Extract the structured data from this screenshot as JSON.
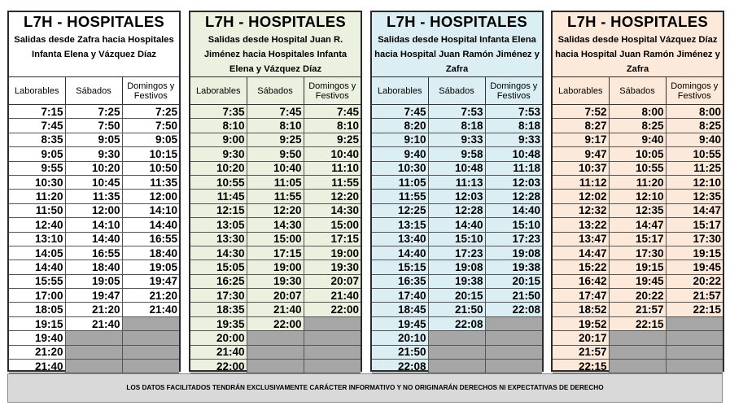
{
  "columns": [
    "Laborables",
    "Sábados",
    "Domingos y Festivos"
  ],
  "panels": [
    {
      "title": "L7H - HOSPITALES",
      "subtitle": "Salidas desde Zafra hacia Hospitales Infanta Elena y Vázquez Díaz",
      "bg": "#ffffff",
      "rows": [
        [
          "7:15",
          "7:25",
          "7:25"
        ],
        [
          "7:45",
          "7:50",
          "7:50"
        ],
        [
          "8:35",
          "9:05",
          "9:05"
        ],
        [
          "9:05",
          "9:30",
          "10:15"
        ],
        [
          "9:55",
          "10:20",
          "10:50"
        ],
        [
          "10:30",
          "10:45",
          "11:35"
        ],
        [
          "11:20",
          "11:35",
          "12:00"
        ],
        [
          "11:50",
          "12:00",
          "14:10"
        ],
        [
          "12:40",
          "14:10",
          "14:40"
        ],
        [
          "13:10",
          "14:40",
          "16:55"
        ],
        [
          "14:05",
          "16:55",
          "18:40"
        ],
        [
          "14:40",
          "18:40",
          "19:05"
        ],
        [
          "15:55",
          "19:05",
          "19:47"
        ],
        [
          "17:00",
          "19:47",
          "21:20"
        ],
        [
          "18:05",
          "21:20",
          "21:40"
        ],
        [
          "19:15",
          "21:40",
          ""
        ],
        [
          "19:40",
          "",
          ""
        ],
        [
          "21:20",
          "",
          ""
        ],
        [
          "21:40",
          "",
          ""
        ]
      ]
    },
    {
      "title": "L7H - HOSPITALES",
      "subtitle": "Salidas desde Hospital Juan R. Jiménez hacia Hospitales Infanta Elena y Vázquez Díaz",
      "bg": "#ebf1de",
      "rows": [
        [
          "7:35",
          "7:45",
          "7:45"
        ],
        [
          "8:10",
          "8:10",
          "8:10"
        ],
        [
          "9:00",
          "9:25",
          "9:25"
        ],
        [
          "9:30",
          "9:50",
          "10:40"
        ],
        [
          "10:20",
          "10:40",
          "11:10"
        ],
        [
          "10:55",
          "11:05",
          "11:55"
        ],
        [
          "11:45",
          "11:55",
          "12:20"
        ],
        [
          "12:15",
          "12:20",
          "14:30"
        ],
        [
          "13:05",
          "14:30",
          "15:00"
        ],
        [
          "13:30",
          "15:00",
          "17:15"
        ],
        [
          "14:30",
          "17:15",
          "19:00"
        ],
        [
          "15:05",
          "19:00",
          "19:30"
        ],
        [
          "16:25",
          "19:30",
          "20:07"
        ],
        [
          "17:30",
          "20:07",
          "21:40"
        ],
        [
          "18:35",
          "21:40",
          "22:00"
        ],
        [
          "19:35",
          "22:00",
          ""
        ],
        [
          "20:00",
          "",
          ""
        ],
        [
          "21:40",
          "",
          ""
        ],
        [
          "22:00",
          "",
          ""
        ]
      ]
    },
    {
      "title": "L7H - HOSPITALES",
      "subtitle": "Salidas desde Hospital Infanta Elena hacia Hospital Juan Ramón Jiménez y Zafra",
      "bg": "#daeef3",
      "rows": [
        [
          "7:45",
          "7:53",
          "7:53"
        ],
        [
          "8:20",
          "8:18",
          "8:18"
        ],
        [
          "9:10",
          "9:33",
          "9:33"
        ],
        [
          "9:40",
          "9:58",
          "10:48"
        ],
        [
          "10:30",
          "10:48",
          "11:18"
        ],
        [
          "11:05",
          "11:13",
          "12:03"
        ],
        [
          "11:55",
          "12:03",
          "12:28"
        ],
        [
          "12:25",
          "12:28",
          "14:40"
        ],
        [
          "13:15",
          "14:40",
          "15:10"
        ],
        [
          "13:40",
          "15:10",
          "17:23"
        ],
        [
          "14:40",
          "17:23",
          "19:08"
        ],
        [
          "15:15",
          "19:08",
          "19:38"
        ],
        [
          "16:35",
          "19:38",
          "20:15"
        ],
        [
          "17:40",
          "20:15",
          "21:50"
        ],
        [
          "18:45",
          "21:50",
          "22:08"
        ],
        [
          "19:45",
          "22:08",
          ""
        ],
        [
          "20:10",
          "",
          ""
        ],
        [
          "21:50",
          "",
          ""
        ],
        [
          "22:08",
          "",
          ""
        ]
      ]
    },
    {
      "title": "L7H - HOSPITALES",
      "subtitle": "Salidas desde Hospital Vázquez Díaz hacia Hospital Juan Ramón Jiménez y Zafra",
      "bg": "#fde9d9",
      "rows": [
        [
          "7:52",
          "8:00",
          "8:00"
        ],
        [
          "8:27",
          "8:25",
          "8:25"
        ],
        [
          "9:17",
          "9:40",
          "9:40"
        ],
        [
          "9:47",
          "10:05",
          "10:55"
        ],
        [
          "10:37",
          "10:55",
          "11:25"
        ],
        [
          "11:12",
          "11:20",
          "12:10"
        ],
        [
          "12:02",
          "12:10",
          "12:35"
        ],
        [
          "12:32",
          "12:35",
          "14:47"
        ],
        [
          "13:22",
          "14:47",
          "15:17"
        ],
        [
          "13:47",
          "15:17",
          "17:30"
        ],
        [
          "14:47",
          "17:30",
          "19:15"
        ],
        [
          "15:22",
          "19:15",
          "19:45"
        ],
        [
          "16:42",
          "19:45",
          "20:22"
        ],
        [
          "17:47",
          "20:22",
          "21:57"
        ],
        [
          "18:52",
          "21:57",
          "22:15"
        ],
        [
          "19:52",
          "22:15",
          ""
        ],
        [
          "20:17",
          "",
          ""
        ],
        [
          "21:57",
          "",
          ""
        ],
        [
          "22:15",
          "",
          ""
        ]
      ]
    }
  ],
  "footer": "LOS DATOS FACILITADOS TENDRÁN EXCLUSIVAMENTE CARÁCTER INFORMATIVO Y NO ORIGINARÁN DERECHOS NI EXPECTATIVAS DE DERECHO",
  "colors": {
    "empty_cell": "#a6a6a6",
    "footer_bg": "#d9d9d9",
    "border": "#2b2b2b"
  }
}
